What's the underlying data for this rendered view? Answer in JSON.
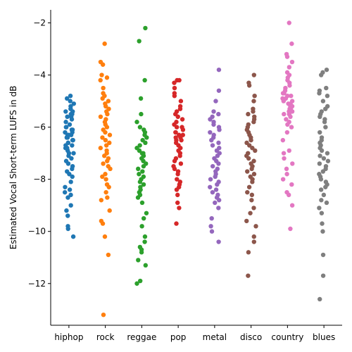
{
  "chart_data": {
    "type": "scatter",
    "subtype": "strip",
    "title": "",
    "xlabel": "",
    "ylabel": "Estimated Vocal Short-term LUFS in dB",
    "ylim": [
      -13.6,
      -1.5
    ],
    "yticks": [
      -12,
      -10,
      -8,
      -6,
      -4,
      -2
    ],
    "ytick_labels": [
      "−12",
      "−10",
      "−8",
      "−6",
      "−4",
      "−2"
    ],
    "grid": false,
    "legend": "none",
    "categories": [
      "hiphop",
      "rock",
      "reggae",
      "pop",
      "metal",
      "disco",
      "country",
      "blues"
    ],
    "colors": [
      "#1f77b4",
      "#ff7f0e",
      "#2ca02c",
      "#d62728",
      "#9467bd",
      "#8c564b",
      "#e377c2",
      "#7f7f7f"
    ],
    "series": [
      {
        "category": "hiphop",
        "values": [
          -4.8,
          -4.9,
          -5.0,
          -5.1,
          -5.2,
          -5.3,
          -5.4,
          -5.4,
          -5.5,
          -5.5,
          -5.6,
          -5.6,
          -5.7,
          -5.8,
          -5.9,
          -6.0,
          -6.0,
          -6.1,
          -6.1,
          -6.2,
          -6.2,
          -6.3,
          -6.3,
          -6.3,
          -6.4,
          -6.4,
          -6.5,
          -6.5,
          -6.6,
          -6.6,
          -6.7,
          -6.7,
          -6.8,
          -6.8,
          -6.9,
          -7.0,
          -7.0,
          -7.1,
          -7.2,
          -7.3,
          -7.4,
          -7.5,
          -7.6,
          -7.7,
          -7.8,
          -7.9,
          -8.1,
          -8.3,
          -8.4,
          -8.5,
          -8.6,
          -8.7,
          -9.0,
          -9.2,
          -9.4,
          -9.8,
          -9.9,
          -10.2
        ]
      },
      {
        "category": "rock",
        "values": [
          -2.8,
          -3.5,
          -3.6,
          -4.0,
          -4.1,
          -4.2,
          -4.5,
          -4.7,
          -4.8,
          -4.9,
          -5.0,
          -5.1,
          -5.2,
          -5.3,
          -5.4,
          -5.5,
          -5.6,
          -5.7,
          -5.8,
          -5.9,
          -6.0,
          -6.1,
          -6.2,
          -6.3,
          -6.4,
          -6.5,
          -6.6,
          -6.7,
          -6.8,
          -6.9,
          -7.0,
          -7.1,
          -7.2,
          -7.3,
          -7.4,
          -7.5,
          -7.6,
          -7.8,
          -7.9,
          -8.0,
          -8.2,
          -8.3,
          -8.5,
          -8.7,
          -8.8,
          -9.2,
          -9.6,
          -9.7,
          -10.2,
          -10.9,
          -13.2
        ]
      },
      {
        "category": "reggae",
        "values": [
          -2.2,
          -2.7,
          -4.2,
          -4.9,
          -5.5,
          -5.8,
          -6.0,
          -6.1,
          -6.2,
          -6.3,
          -6.4,
          -6.5,
          -6.6,
          -6.7,
          -6.8,
          -6.9,
          -7.0,
          -7.0,
          -7.1,
          -7.1,
          -7.2,
          -7.3,
          -7.4,
          -7.5,
          -7.6,
          -7.7,
          -7.8,
          -7.9,
          -8.0,
          -8.1,
          -8.2,
          -8.3,
          -8.4,
          -8.5,
          -8.6,
          -8.7,
          -8.9,
          -9.3,
          -9.5,
          -9.8,
          -10.2,
          -10.4,
          -10.6,
          -10.7,
          -10.8,
          -11.1,
          -11.3,
          -11.9,
          -12.0
        ]
      },
      {
        "category": "pop",
        "values": [
          -4.2,
          -4.2,
          -4.3,
          -4.5,
          -4.7,
          -4.8,
          -5.0,
          -5.2,
          -5.3,
          -5.4,
          -5.5,
          -5.6,
          -5.7,
          -5.8,
          -5.9,
          -6.0,
          -6.0,
          -6.1,
          -6.2,
          -6.2,
          -6.3,
          -6.3,
          -6.4,
          -6.4,
          -6.5,
          -6.5,
          -6.6,
          -6.7,
          -6.8,
          -6.9,
          -7.0,
          -7.1,
          -7.2,
          -7.3,
          -7.4,
          -7.5,
          -7.6,
          -7.7,
          -7.8,
          -8.0,
          -8.1,
          -8.2,
          -8.3,
          -8.4,
          -8.6,
          -8.9,
          -9.1,
          -9.7
        ]
      },
      {
        "category": "metal",
        "values": [
          -3.8,
          -4.6,
          -5.0,
          -5.4,
          -5.5,
          -5.6,
          -5.7,
          -5.8,
          -5.9,
          -6.0,
          -6.1,
          -6.2,
          -6.3,
          -6.4,
          -6.5,
          -6.6,
          -6.7,
          -6.8,
          -6.9,
          -7.0,
          -7.1,
          -7.2,
          -7.3,
          -7.4,
          -7.5,
          -7.6,
          -7.7,
          -7.8,
          -7.9,
          -8.0,
          -8.1,
          -8.2,
          -8.3,
          -8.4,
          -8.5,
          -8.6,
          -8.7,
          -8.8,
          -8.9,
          -9.1,
          -9.5,
          -9.8,
          -10.0,
          -10.4
        ]
      },
      {
        "category": "disco",
        "values": [
          -4.0,
          -4.3,
          -4.4,
          -4.8,
          -5.0,
          -5.3,
          -5.4,
          -5.5,
          -5.6,
          -5.7,
          -5.8,
          -5.9,
          -6.0,
          -6.1,
          -6.2,
          -6.3,
          -6.4,
          -6.5,
          -6.6,
          -6.7,
          -6.8,
          -6.9,
          -7.0,
          -7.1,
          -7.2,
          -7.3,
          -7.4,
          -7.5,
          -7.6,
          -7.7,
          -7.8,
          -7.9,
          -8.0,
          -8.1,
          -8.3,
          -8.5,
          -8.6,
          -8.8,
          -9.1,
          -9.3,
          -9.6,
          -9.8,
          -10.2,
          -10.4,
          -10.8,
          -11.7
        ]
      },
      {
        "category": "country",
        "values": [
          -2.0,
          -2.8,
          -3.2,
          -3.3,
          -3.5,
          -3.7,
          -3.9,
          -4.0,
          -4.1,
          -4.2,
          -4.3,
          -4.4,
          -4.5,
          -4.6,
          -4.7,
          -4.7,
          -4.8,
          -4.8,
          -4.9,
          -4.9,
          -5.0,
          -5.0,
          -5.1,
          -5.1,
          -5.2,
          -5.2,
          -5.3,
          -5.3,
          -5.4,
          -5.4,
          -5.5,
          -5.5,
          -5.6,
          -5.7,
          -5.8,
          -5.9,
          -6.0,
          -6.2,
          -6.5,
          -6.9,
          -7.0,
          -7.2,
          -7.4,
          -7.6,
          -7.8,
          -8.0,
          -8.2,
          -8.5,
          -8.6,
          -9.0,
          -9.9
        ]
      },
      {
        "category": "blues",
        "values": [
          -3.8,
          -3.9,
          -4.0,
          -4.5,
          -4.6,
          -4.7,
          -4.8,
          -5.0,
          -5.2,
          -5.3,
          -5.4,
          -5.5,
          -5.6,
          -5.7,
          -5.8,
          -6.0,
          -6.2,
          -6.4,
          -6.5,
          -6.6,
          -6.7,
          -6.8,
          -6.9,
          -7.0,
          -7.1,
          -7.2,
          -7.3,
          -7.4,
          -7.5,
          -7.6,
          -7.7,
          -7.8,
          -7.9,
          -8.0,
          -8.1,
          -8.2,
          -8.3,
          -8.4,
          -8.6,
          -8.8,
          -8.9,
          -9.1,
          -9.3,
          -9.7,
          -10.0,
          -10.9,
          -11.7,
          -12.6
        ]
      }
    ]
  }
}
